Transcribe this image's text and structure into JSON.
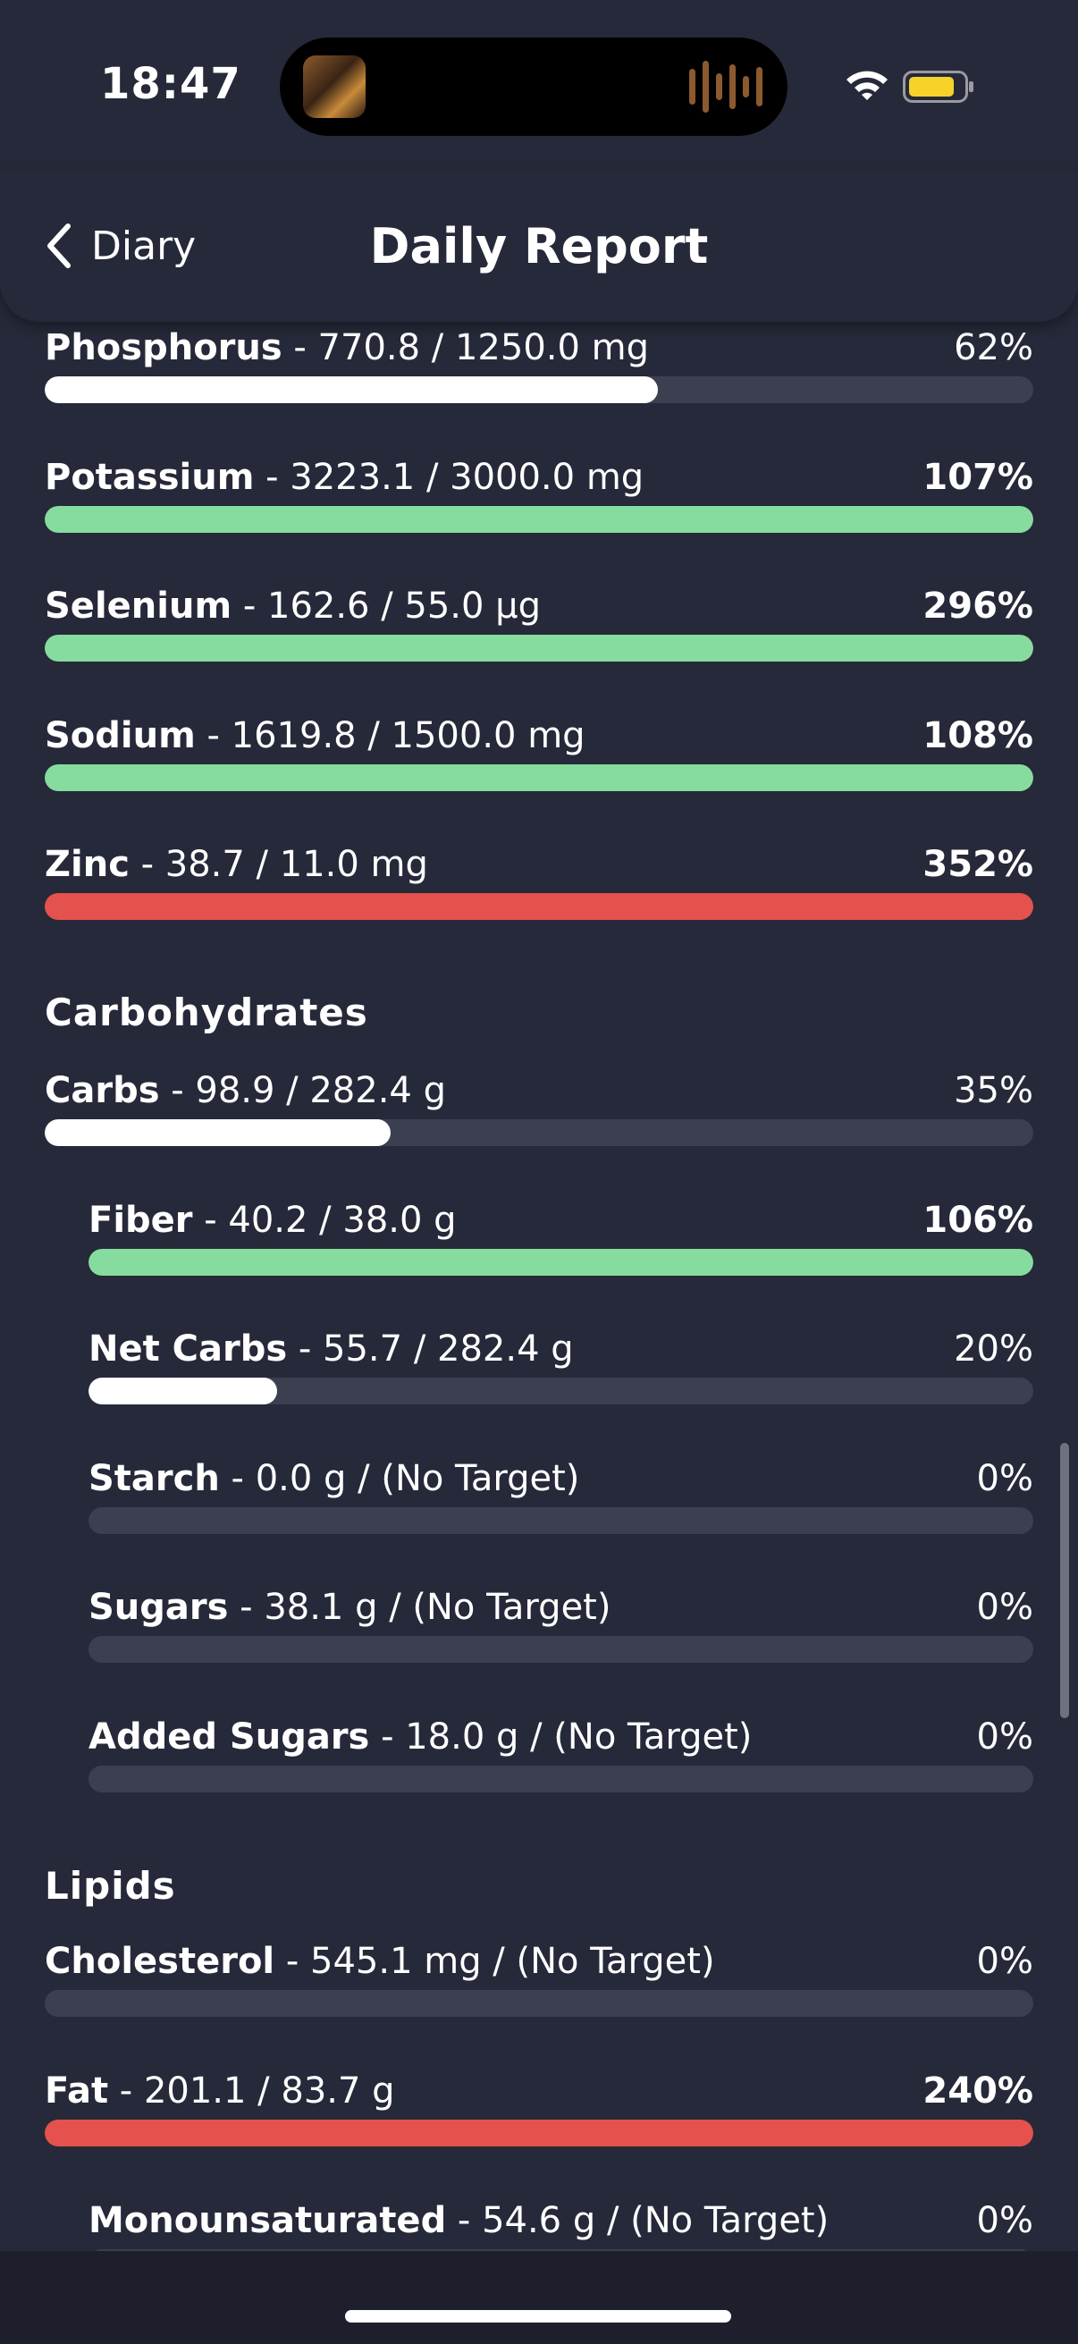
{
  "status_bar": {
    "time": "18:47"
  },
  "header": {
    "back_label": "Diary",
    "title": "Daily Report"
  },
  "colors": {
    "good": "#86dc9e",
    "over": "#e5514c",
    "partial": "#ffffff",
    "track": "#3c3f4f"
  },
  "minerals": [
    {
      "name": "Phosphorus",
      "detail": " - 770.8 / 1250.0 mg",
      "percent": "62%",
      "fill": 0.62,
      "status": "partial",
      "pct_bold": false
    },
    {
      "name": "Potassium",
      "detail": " - 3223.1 / 3000.0 mg",
      "percent": "107%",
      "fill": 1.0,
      "status": "good",
      "pct_bold": true
    },
    {
      "name": "Selenium",
      "detail": " - 162.6 / 55.0 μg",
      "percent": "296%",
      "fill": 1.0,
      "status": "good",
      "pct_bold": true
    },
    {
      "name": "Sodium",
      "detail": " - 1619.8 / 1500.0 mg",
      "percent": "108%",
      "fill": 1.0,
      "status": "good",
      "pct_bold": true
    },
    {
      "name": "Zinc",
      "detail": " - 38.7 / 11.0 mg",
      "percent": "352%",
      "fill": 1.0,
      "status": "over",
      "pct_bold": true
    }
  ],
  "carbohydrates": {
    "title": "Carbohydrates",
    "items": [
      {
        "name": "Carbs",
        "detail": " - 98.9 / 282.4 g",
        "percent": "35%",
        "fill": 0.35,
        "status": "partial",
        "pct_bold": false
      },
      {
        "name": "Fiber",
        "detail": " - 40.2 / 38.0 g",
        "percent": "106%",
        "fill": 1.0,
        "status": "good",
        "pct_bold": true
      },
      {
        "name": "Net Carbs",
        "detail": " - 55.7 / 282.4 g",
        "percent": "20%",
        "fill": 0.2,
        "status": "partial",
        "pct_bold": false
      },
      {
        "name": "Starch",
        "detail": " - 0.0 g / (No Target)",
        "percent": "0%",
        "fill": 0,
        "status": "partial",
        "pct_bold": false
      },
      {
        "name": "Sugars",
        "detail": " - 38.1 g / (No Target)",
        "percent": "0%",
        "fill": 0,
        "status": "partial",
        "pct_bold": false
      },
      {
        "name": "Added Sugars",
        "detail": " - 18.0 g / (No Target)",
        "percent": "0%",
        "fill": 0,
        "status": "partial",
        "pct_bold": false
      }
    ]
  },
  "lipids": {
    "title": "Lipids",
    "items": [
      {
        "name": "Cholesterol",
        "detail": " - 545.1 mg / (No Target)",
        "percent": "0%",
        "fill": 0,
        "status": "partial",
        "pct_bold": false
      },
      {
        "name": "Fat",
        "detail": " - 201.1 / 83.7 g",
        "percent": "240%",
        "fill": 1.0,
        "status": "over",
        "pct_bold": true
      },
      {
        "name": "Monounsaturated",
        "detail": " - 54.6 g / (No Target)",
        "percent": "0%",
        "fill": 0,
        "status": "partial",
        "pct_bold": false
      }
    ]
  }
}
